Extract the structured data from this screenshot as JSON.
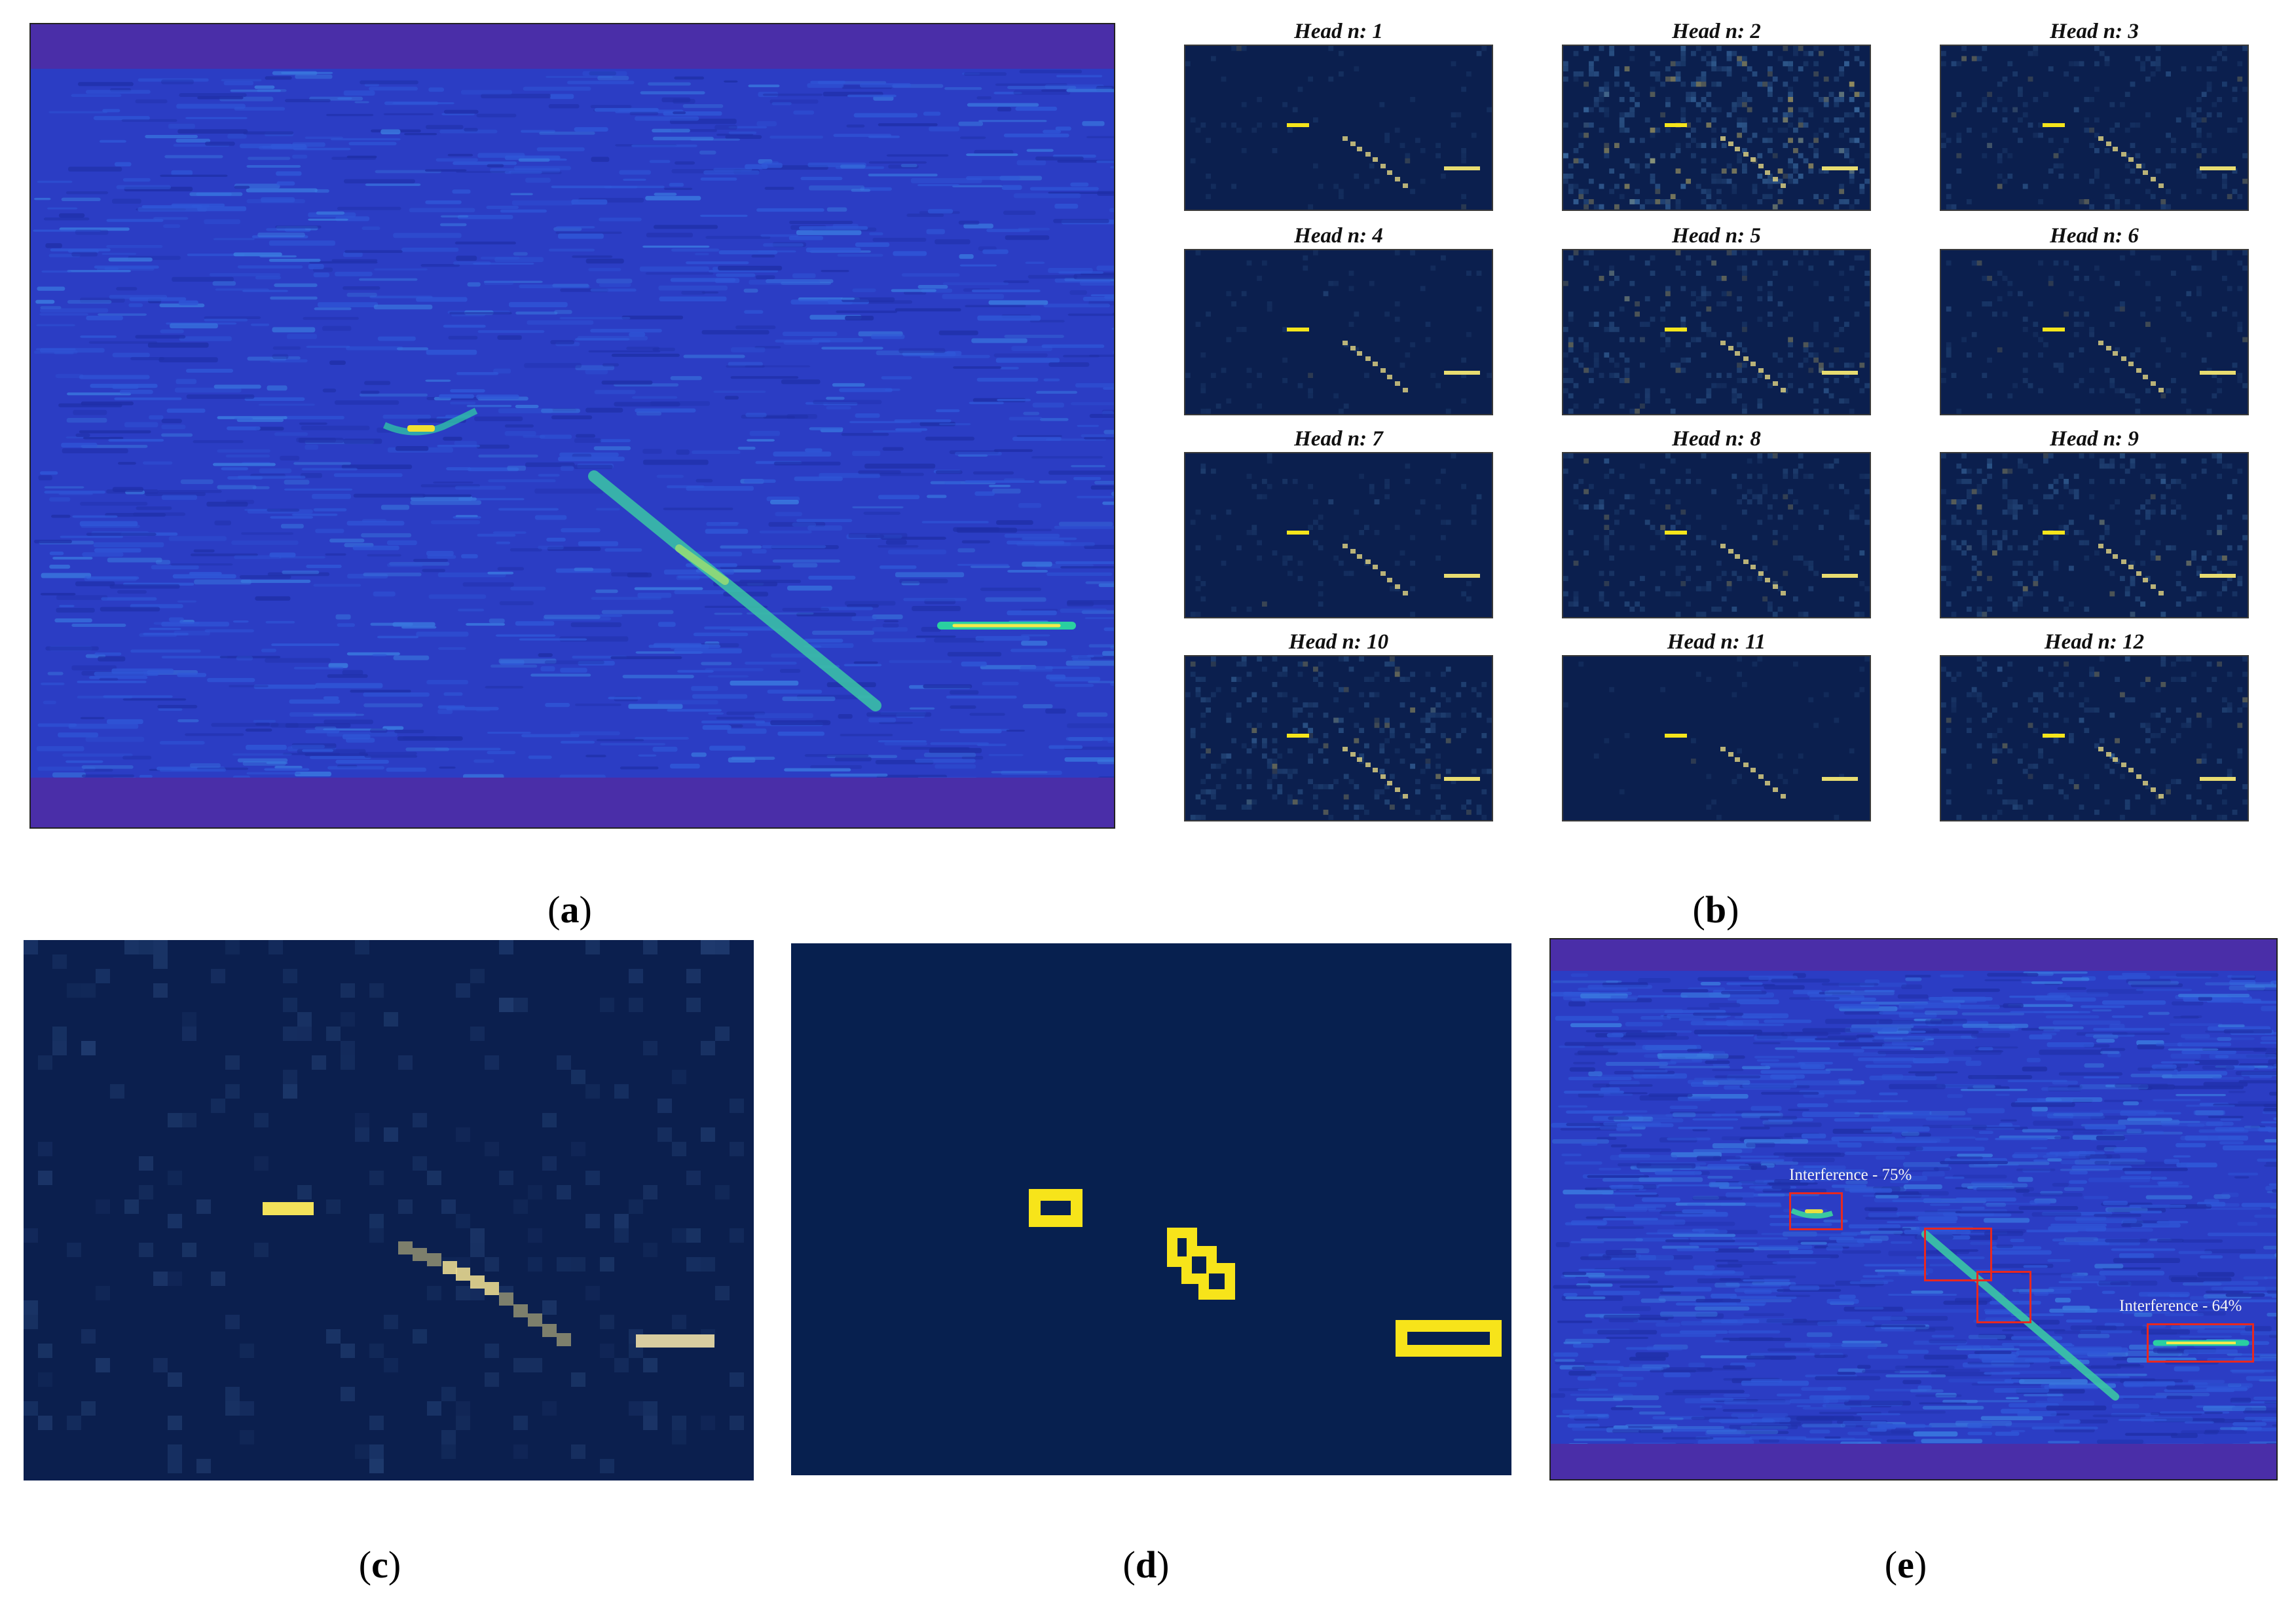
{
  "panel_captions": {
    "a": "a",
    "b": "b",
    "c": "c",
    "d": "d",
    "e": "e"
  },
  "heads": [
    {
      "label": "Head n: 1",
      "noise": 0.15
    },
    {
      "label": "Head n: 2",
      "noise": 0.95
    },
    {
      "label": "Head n: 3",
      "noise": 0.45
    },
    {
      "label": "Head n: 4",
      "noise": 0.15
    },
    {
      "label": "Head n: 5",
      "noise": 0.55
    },
    {
      "label": "Head n: 6",
      "noise": 0.3
    },
    {
      "label": "Head n: 7",
      "noise": 0.2
    },
    {
      "label": "Head n: 8",
      "noise": 0.45
    },
    {
      "label": "Head n: 9",
      "noise": 0.6
    },
    {
      "label": "Head n: 10",
      "noise": 0.6
    },
    {
      "label": "Head n: 11",
      "noise": 0.08
    },
    {
      "label": "Head n: 12",
      "noise": 0.45
    }
  ],
  "detections": [
    {
      "label": "Interference - 75%"
    },
    {
      "label": ""
    },
    {
      "label": ""
    },
    {
      "label": "Interference - 64%"
    }
  ],
  "colors": {
    "spectrogram_bg": "#2c3fc8",
    "spectrogram_band": "#4a2ea8",
    "attention_bg": "#0b1f4e",
    "highlight": "#f5e51b",
    "box": "#e8281f"
  }
}
